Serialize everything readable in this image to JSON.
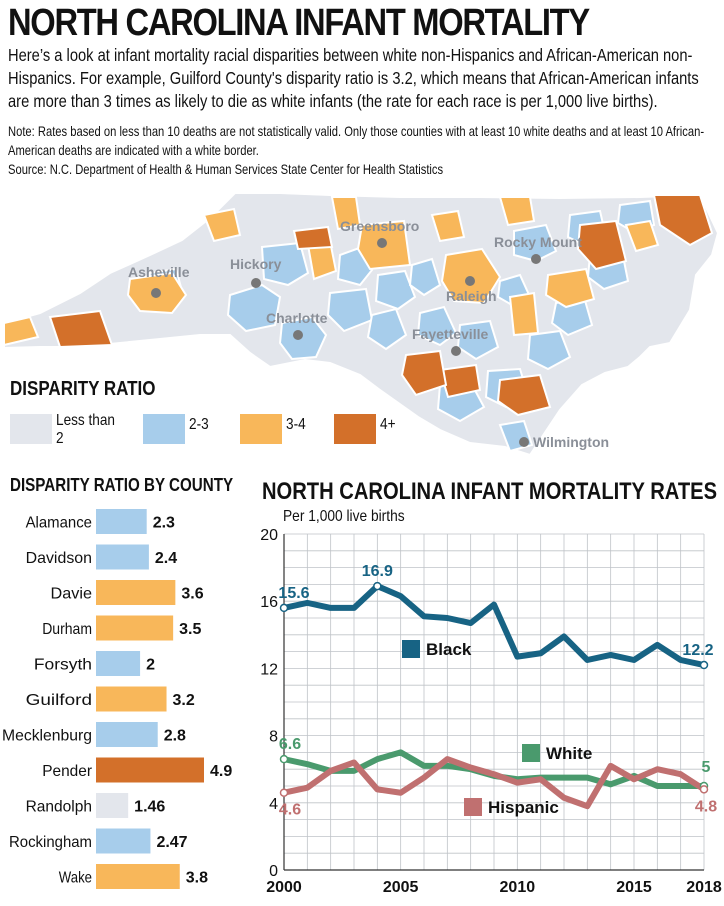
{
  "header": {
    "title": "NORTH CAROLINA INFANT MORTALITY",
    "intro": "Here’s a look at infant mortality racial disparities between white non-Hispanics and African-American non-Hispanics. For example, Guilford County's disparity ratio is 3.2, which means that African-American infants are more than 3 times as likely to die as white infants (the rate for each race is per 1,000 live births).",
    "note": "Note: Rates based on less than 10 deaths are not statistically valid. Only those counties with at least 10 white deaths and at least 10 African-American deaths are indicated with a white border.",
    "source": "Source: N.C. Department of Health & Human Services State Center for Health Statistics"
  },
  "map": {
    "cities": [
      {
        "name": "Asheville"
      },
      {
        "name": "Hickory"
      },
      {
        "name": "Charlotte"
      },
      {
        "name": "Greensboro"
      },
      {
        "name": "Rocky Mount"
      },
      {
        "name": "Raleigh"
      },
      {
        "name": "Fayetteville"
      },
      {
        "name": "Wilmington"
      }
    ],
    "legend_title": "DISPARITY RATIO",
    "legend": [
      {
        "label": "Less than 2",
        "color": "#e3e6ec"
      },
      {
        "label": "2-3",
        "color": "#a7cdeb"
      },
      {
        "label": "3-4",
        "color": "#f8b75a"
      },
      {
        "label": "4+",
        "color": "#d3702a"
      }
    ],
    "colors": {
      "outline": "#ffffff",
      "base": "#e3e6ec",
      "city_dot": "#777777"
    }
  },
  "chart_data": [
    {
      "type": "bar",
      "title": "DISPARITY RATIO BY COUNTY",
      "categories": [
        "Alamance",
        "Davidson",
        "Davie",
        "Durham",
        "Forsyth",
        "Guilford",
        "Mecklenburg",
        "Pender",
        "Randolph",
        "Rockingham",
        "Wake"
      ],
      "values": [
        2.3,
        2.4,
        3.6,
        3.5,
        2,
        3.2,
        2.8,
        4.9,
        1.46,
        2.47,
        3.8
      ],
      "value_labels": [
        "2.3",
        "2.4",
        "3.6",
        "3.5",
        "2",
        "3.2",
        "2.8",
        "4.9",
        "1.46",
        "2.47",
        "3.8"
      ],
      "colors": [
        "#a7cdeb",
        "#a7cdeb",
        "#f8b75a",
        "#f8b75a",
        "#a7cdeb",
        "#f8b75a",
        "#a7cdeb",
        "#d3702a",
        "#e3e6ec",
        "#a7cdeb",
        "#f8b75a"
      ],
      "orientation": "horizontal",
      "xlim": [
        0,
        4.9
      ]
    },
    {
      "type": "line",
      "title": "NORTH CAROLINA INFANT MORTALITY RATES",
      "subtitle": "Per 1,000 live births",
      "x": [
        2000,
        2001,
        2002,
        2003,
        2004,
        2005,
        2006,
        2007,
        2008,
        2009,
        2010,
        2011,
        2012,
        2013,
        2014,
        2015,
        2016,
        2017,
        2018
      ],
      "xticks": [
        2000,
        2005,
        2010,
        2015,
        2018
      ],
      "ylim": [
        0,
        20
      ],
      "yticks": [
        0,
        4,
        8,
        12,
        16,
        20
      ],
      "grid": true,
      "series": [
        {
          "name": "Black",
          "color": "#176384",
          "values": [
            15.6,
            15.9,
            15.6,
            15.6,
            16.9,
            16.3,
            15.1,
            15.0,
            14.7,
            15.8,
            12.7,
            12.9,
            13.9,
            12.5,
            12.8,
            12.5,
            13.4,
            12.5,
            12.2
          ],
          "start_label": "15.6",
          "peak_label": "16.9",
          "end_label": "12.2"
        },
        {
          "name": "White",
          "color": "#4a9a6d",
          "values": [
            6.6,
            6.3,
            5.9,
            5.9,
            6.6,
            7.0,
            6.2,
            6.2,
            6.0,
            5.6,
            5.4,
            5.5,
            5.5,
            5.5,
            5.1,
            5.6,
            5.0,
            5.0,
            5.0
          ],
          "start_label": "6.6",
          "end_label": "5"
        },
        {
          "name": "Hispanic",
          "color": "#c07070",
          "values": [
            4.6,
            4.9,
            5.9,
            6.4,
            4.8,
            4.6,
            5.5,
            6.6,
            6.1,
            5.7,
            5.2,
            5.4,
            4.3,
            3.8,
            6.2,
            5.4,
            6.0,
            5.7,
            4.8
          ],
          "start_label": "4.6",
          "end_label": "4.8"
        }
      ]
    }
  ]
}
